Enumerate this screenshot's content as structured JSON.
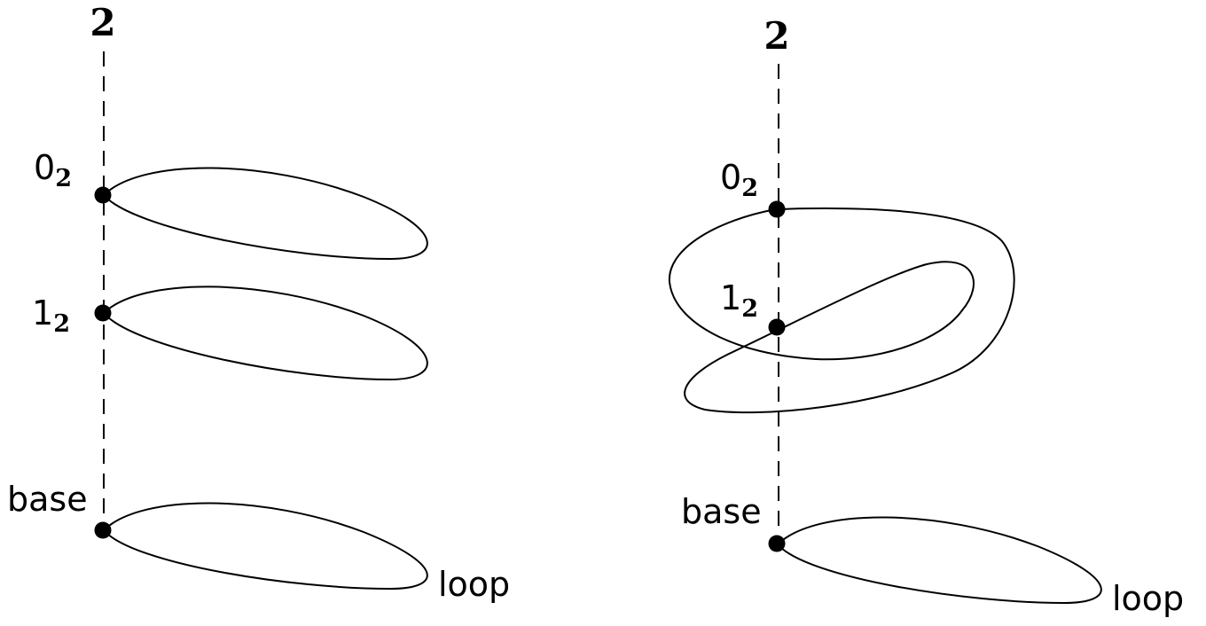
{
  "left_panel": {
    "axis_label": "2",
    "points": [
      {
        "main": "0",
        "sub": "2"
      },
      {
        "main": "1",
        "sub": "2"
      },
      {
        "main": "base",
        "sub": ""
      }
    ],
    "loop_label": "loop"
  },
  "right_panel": {
    "axis_label": "2",
    "points": [
      {
        "main": "0",
        "sub": "2"
      },
      {
        "main": "1",
        "sub": "2"
      },
      {
        "main": "base",
        "sub": ""
      }
    ],
    "loop_label": "loop"
  }
}
